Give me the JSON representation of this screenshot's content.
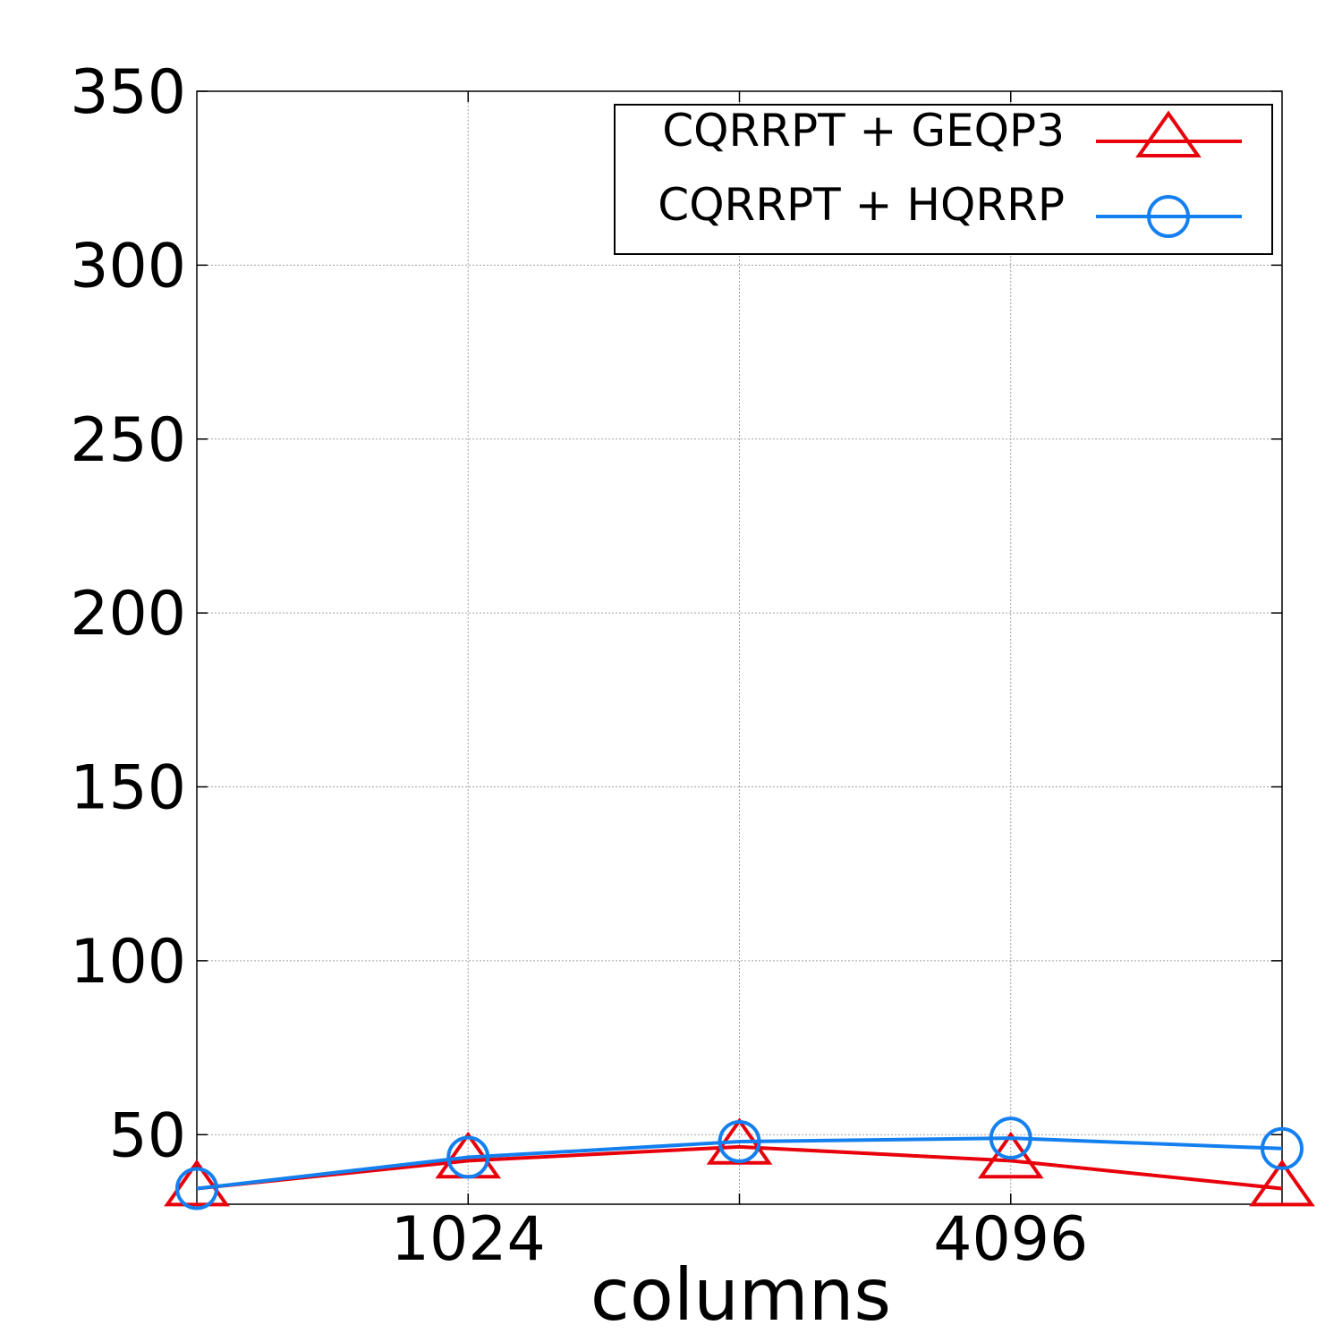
{
  "chart_data": {
    "type": "line",
    "xlabel": "columns",
    "ylabel": "",
    "x_ticks_labeled": [
      {
        "x": 1024,
        "label": "1024"
      },
      {
        "x": 4096,
        "label": "4096"
      }
    ],
    "x_tick_positions": [
      512,
      1024,
      2048,
      4096,
      8192
    ],
    "x_scale": "log2",
    "xlim": [
      512,
      8192
    ],
    "ylim": [
      30,
      350
    ],
    "y_ticks": [
      50,
      100,
      150,
      200,
      250,
      300,
      350
    ],
    "grid": true,
    "legend_position": "top-right",
    "x": [
      512,
      1024,
      2048,
      4096,
      8192
    ],
    "series": [
      {
        "name": "CQRRPT + GEQP3",
        "color": "#e8000b",
        "marker": "triangle",
        "values": [
          34.5,
          42.5,
          46.5,
          42.5,
          34.5
        ]
      },
      {
        "name": "CQRRPT + HQRRP",
        "color": "#1480f0",
        "marker": "circle",
        "values": [
          34.5,
          43.5,
          48,
          49,
          46
        ]
      }
    ]
  }
}
